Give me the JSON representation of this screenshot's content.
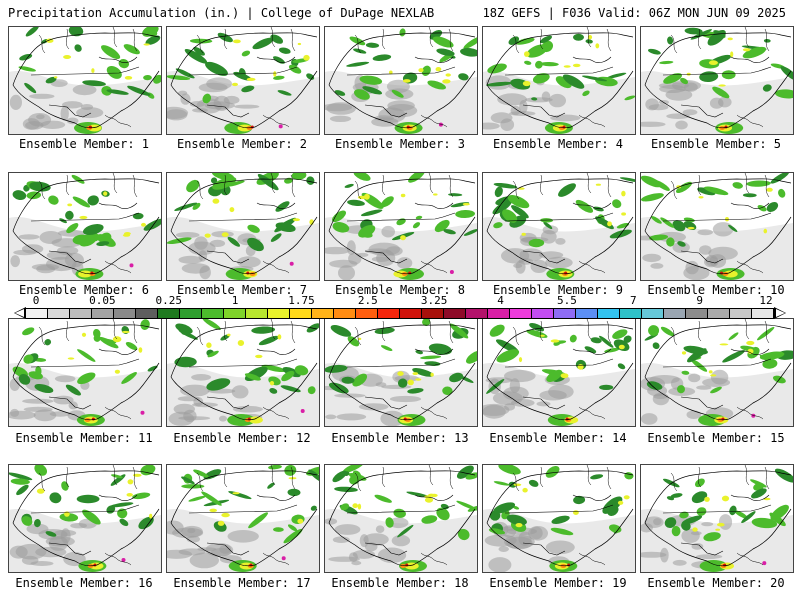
{
  "header": {
    "left_title": "Precipitation Accumulation (in.) | College of DuPage NEXLAB",
    "right_title": "18Z GEFS | F036 Valid: 06Z MON JUN 09 2025"
  },
  "panels": [
    {
      "label": "Ensemble Member: 1"
    },
    {
      "label": "Ensemble Member: 2"
    },
    {
      "label": "Ensemble Member: 3"
    },
    {
      "label": "Ensemble Member: 4"
    },
    {
      "label": "Ensemble Member: 5"
    },
    {
      "label": "Ensemble Member: 6"
    },
    {
      "label": "Ensemble Member: 7"
    },
    {
      "label": "Ensemble Member: 8"
    },
    {
      "label": "Ensemble Member: 9"
    },
    {
      "label": "Ensemble Member: 10"
    },
    {
      "label": "Ensemble Member: 11"
    },
    {
      "label": "Ensemble Member: 12"
    },
    {
      "label": "Ensemble Member: 13"
    },
    {
      "label": "Ensemble Member: 14"
    },
    {
      "label": "Ensemble Member: 15"
    },
    {
      "label": "Ensemble Member: 16"
    },
    {
      "label": "Ensemble Member: 17"
    },
    {
      "label": "Ensemble Member: 18"
    },
    {
      "label": "Ensemble Member: 19"
    },
    {
      "label": "Ensemble Member: 20"
    }
  ],
  "legend": {
    "tick_labels": [
      "0",
      "0.05",
      "0.25",
      "1",
      "1.75",
      "2.5",
      "3.25",
      "4",
      "5.5",
      "7",
      "9",
      "12"
    ],
    "colors": [
      "#f2f2f2",
      "#d9d9d9",
      "#bdbdbd",
      "#a3a3a3",
      "#8a8a8a",
      "#5e5e5e",
      "#1f7a1f",
      "#2e9e2e",
      "#4cbb2c",
      "#7fd32a",
      "#b8e62e",
      "#e9f22c",
      "#ffd91a",
      "#ffb319",
      "#ff8c12",
      "#ff5e0f",
      "#f5260c",
      "#d1120b",
      "#a8100b",
      "#8e0a28",
      "#b3126b",
      "#d91ea6",
      "#ee3bdc",
      "#c44df2",
      "#8f6cf5",
      "#5c8ff5",
      "#33c3f0",
      "#2ec2c8",
      "#66c8d9",
      "#9aa6b2",
      "#8c8c8c",
      "#aaaaaa",
      "#c8c8c8",
      "#e6e6e6"
    ]
  },
  "map_colors": {
    "land_light": "#e9e9e9",
    "land_gray": "#9c9c9c",
    "green_dark": "#2b8a2b",
    "green": "#4cbb2c",
    "yellow": "#e9f22c",
    "orange": "#ff8c12",
    "red": "#d1120b",
    "magenta": "#d91ea6",
    "border": "#000000"
  }
}
